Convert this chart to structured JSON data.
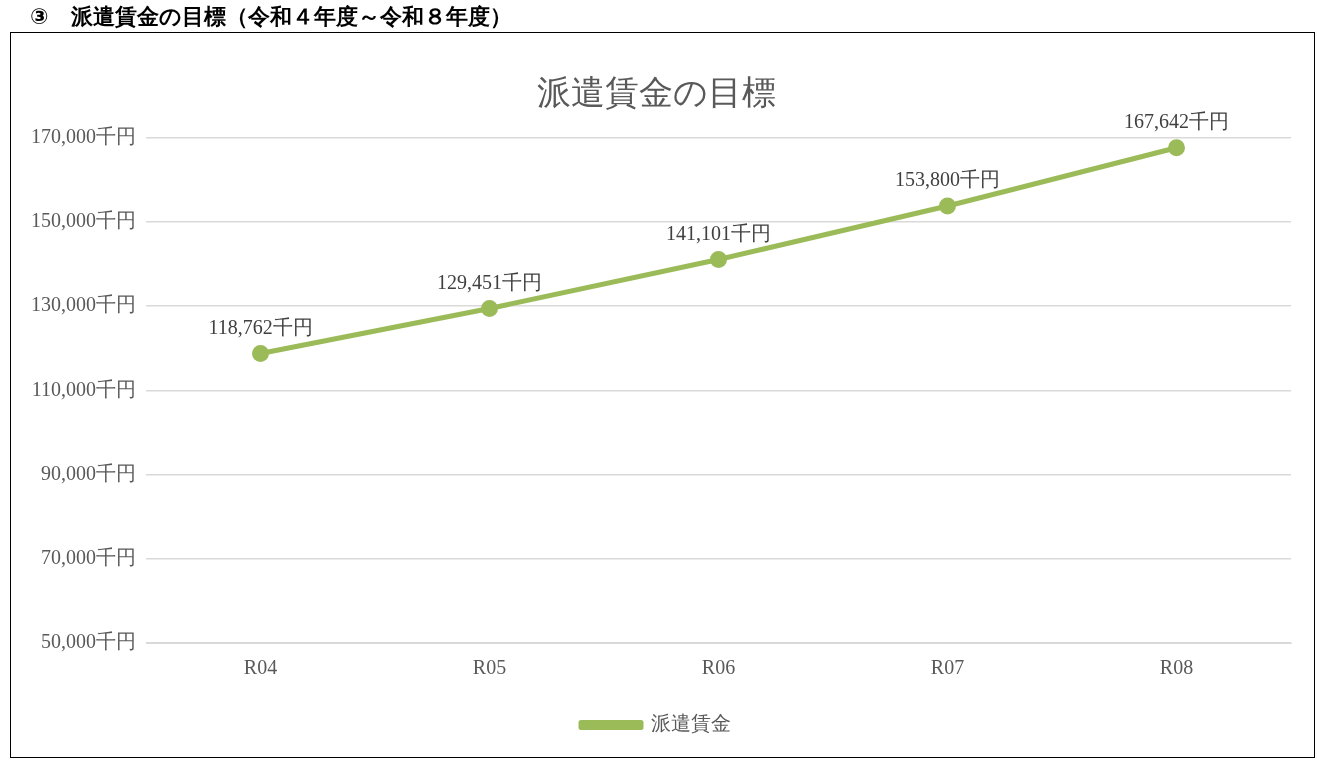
{
  "chart_data": {
    "type": "line",
    "title": "派遣賃金の目標",
    "annotations": [
      "③　派遣賃金の目標（令和４年度～令和８年度）"
    ],
    "categories": [
      "R04",
      "R05",
      "R06",
      "R07",
      "R08"
    ],
    "series": [
      {
        "name": "派遣賃金",
        "color": "#9bbb59",
        "values": [
          118762,
          129451,
          141101,
          153800,
          167642
        ],
        "value_labels": [
          "118,762千円",
          "129,451千円",
          "141,101千円",
          "153,800千円",
          "167,642千円"
        ]
      }
    ],
    "ylim": [
      50000,
      170000
    ],
    "yticks": [
      {
        "value": 50000,
        "label": "50,000千円"
      },
      {
        "value": 70000,
        "label": "70,000千円"
      },
      {
        "value": 90000,
        "label": "90,000千円"
      },
      {
        "value": 110000,
        "label": "110,000千円"
      },
      {
        "value": 130000,
        "label": "130,000千円"
      },
      {
        "value": 150000,
        "label": "150,000千円"
      },
      {
        "value": 170000,
        "label": "170,000千円"
      }
    ],
    "grid": "y",
    "legend": "bottom",
    "marker": "circle",
    "line_style": "solid"
  }
}
